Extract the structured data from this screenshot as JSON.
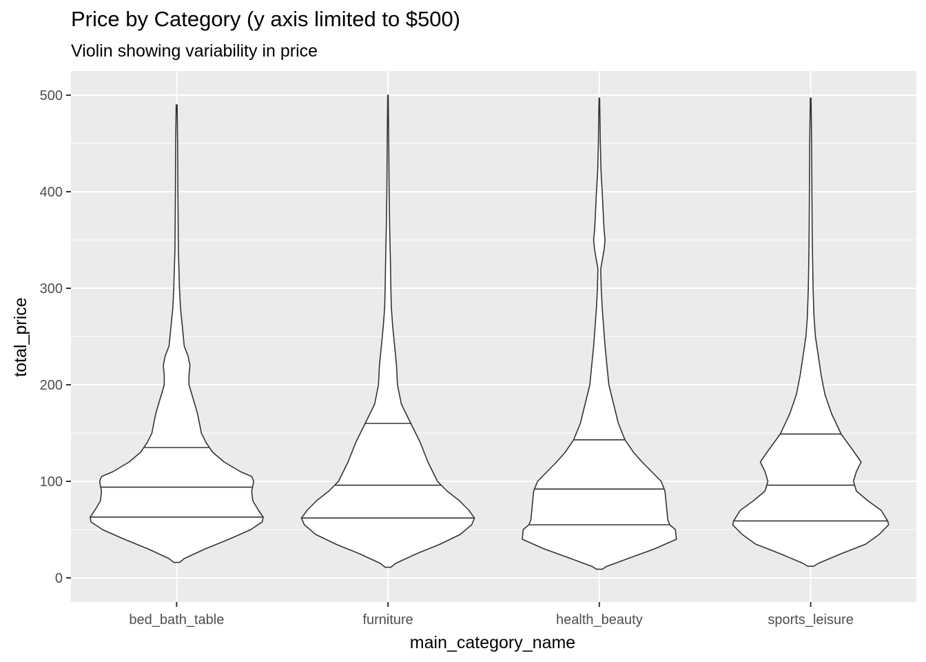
{
  "chart_data": {
    "type": "violin",
    "title": "Price by Category (y axis limited to $500)",
    "subtitle": "Violin showing variability in price",
    "xlabel": "main_category_name",
    "ylabel": "total_price",
    "ylim": [
      -25,
      525
    ],
    "yticks": [
      0,
      100,
      200,
      300,
      400,
      500
    ],
    "ytick_labels": [
      "0",
      "100",
      "200",
      "300",
      "400",
      "500"
    ],
    "grid": true,
    "panel_background": "#ebebeb",
    "grid_color": "#ffffff",
    "violin_fill": "#ffffff",
    "violin_stroke": "#333333",
    "categories": [
      "bed_bath_table",
      "furniture",
      "health_beauty",
      "sports_leisure"
    ],
    "violins": [
      {
        "category": "bed_bath_table",
        "quantiles": [
          63,
          94,
          135
        ],
        "profile": [
          [
            16,
            0.03
          ],
          [
            20,
            0.08
          ],
          [
            30,
            0.3
          ],
          [
            40,
            0.55
          ],
          [
            50,
            0.78
          ],
          [
            58,
            0.9
          ],
          [
            63,
            0.91
          ],
          [
            70,
            0.86
          ],
          [
            80,
            0.8
          ],
          [
            90,
            0.79
          ],
          [
            95,
            0.8
          ],
          [
            100,
            0.81
          ],
          [
            105,
            0.79
          ],
          [
            110,
            0.67
          ],
          [
            120,
            0.5
          ],
          [
            130,
            0.38
          ],
          [
            140,
            0.31
          ],
          [
            150,
            0.26
          ],
          [
            160,
            0.24
          ],
          [
            170,
            0.22
          ],
          [
            180,
            0.19
          ],
          [
            190,
            0.16
          ],
          [
            200,
            0.13
          ],
          [
            210,
            0.13
          ],
          [
            220,
            0.14
          ],
          [
            230,
            0.12
          ],
          [
            240,
            0.08
          ],
          [
            260,
            0.06
          ],
          [
            280,
            0.04
          ],
          [
            300,
            0.03
          ],
          [
            340,
            0.018
          ],
          [
            400,
            0.013
          ],
          [
            450,
            0.01
          ],
          [
            490,
            0.005
          ]
        ]
      },
      {
        "category": "furniture",
        "quantiles": [
          62,
          96,
          160
        ],
        "profile": [
          [
            11,
            0.03
          ],
          [
            15,
            0.08
          ],
          [
            25,
            0.3
          ],
          [
            35,
            0.55
          ],
          [
            45,
            0.76
          ],
          [
            55,
            0.88
          ],
          [
            62,
            0.91
          ],
          [
            70,
            0.85
          ],
          [
            80,
            0.75
          ],
          [
            90,
            0.62
          ],
          [
            100,
            0.52
          ],
          [
            120,
            0.42
          ],
          [
            140,
            0.34
          ],
          [
            160,
            0.24
          ],
          [
            180,
            0.14
          ],
          [
            200,
            0.1
          ],
          [
            220,
            0.09
          ],
          [
            240,
            0.07
          ],
          [
            260,
            0.05
          ],
          [
            280,
            0.035
          ],
          [
            300,
            0.03
          ],
          [
            330,
            0.025
          ],
          [
            360,
            0.018
          ],
          [
            400,
            0.012
          ],
          [
            450,
            0.008
          ],
          [
            500,
            0.003
          ]
        ]
      },
      {
        "category": "health_beauty",
        "quantiles": [
          55,
          92,
          143
        ],
        "profile": [
          [
            9,
            0.03
          ],
          [
            12,
            0.08
          ],
          [
            20,
            0.3
          ],
          [
            30,
            0.58
          ],
          [
            40,
            0.81
          ],
          [
            50,
            0.8
          ],
          [
            55,
            0.74
          ],
          [
            60,
            0.72
          ],
          [
            70,
            0.71
          ],
          [
            80,
            0.7
          ],
          [
            90,
            0.69
          ],
          [
            100,
            0.65
          ],
          [
            110,
            0.55
          ],
          [
            120,
            0.45
          ],
          [
            130,
            0.36
          ],
          [
            143,
            0.27
          ],
          [
            160,
            0.2
          ],
          [
            180,
            0.15
          ],
          [
            200,
            0.1
          ],
          [
            220,
            0.08
          ],
          [
            240,
            0.06
          ],
          [
            260,
            0.045
          ],
          [
            280,
            0.03
          ],
          [
            300,
            0.02
          ],
          [
            320,
            0.015
          ],
          [
            340,
            0.05
          ],
          [
            350,
            0.06
          ],
          [
            360,
            0.05
          ],
          [
            380,
            0.04
          ],
          [
            400,
            0.03
          ],
          [
            420,
            0.018
          ],
          [
            450,
            0.01
          ],
          [
            480,
            0.006
          ],
          [
            497,
            0.003
          ]
        ]
      },
      {
        "category": "sports_leisure",
        "quantiles": [
          59,
          96,
          149
        ],
        "profile": [
          [
            12,
            0.03
          ],
          [
            15,
            0.08
          ],
          [
            25,
            0.32
          ],
          [
            35,
            0.58
          ],
          [
            45,
            0.72
          ],
          [
            55,
            0.82
          ],
          [
            59,
            0.81
          ],
          [
            70,
            0.74
          ],
          [
            80,
            0.6
          ],
          [
            90,
            0.48
          ],
          [
            100,
            0.45
          ],
          [
            110,
            0.48
          ],
          [
            120,
            0.53
          ],
          [
            130,
            0.46
          ],
          [
            149,
            0.32
          ],
          [
            170,
            0.22
          ],
          [
            190,
            0.15
          ],
          [
            210,
            0.11
          ],
          [
            230,
            0.08
          ],
          [
            250,
            0.05
          ],
          [
            270,
            0.035
          ],
          [
            300,
            0.025
          ],
          [
            330,
            0.02
          ],
          [
            360,
            0.016
          ],
          [
            400,
            0.013
          ],
          [
            450,
            0.01
          ],
          [
            497,
            0.004
          ]
        ]
      }
    ]
  }
}
